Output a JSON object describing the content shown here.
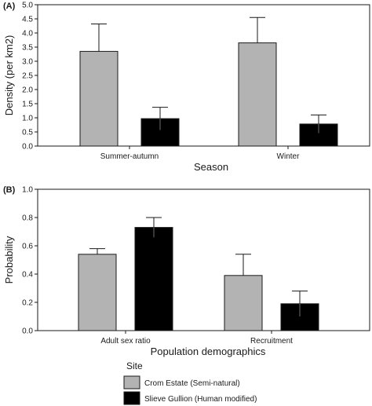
{
  "chart_data": [
    {
      "panel": "(A)",
      "type": "bar",
      "categories": [
        "Summer-autumn",
        "Winter"
      ],
      "series": [
        {
          "name": "Crom Estate (Semi-natural)",
          "values": [
            3.35,
            3.65
          ],
          "errors": [
            0.97,
            0.9
          ]
        },
        {
          "name": "Slieve Gullion (Human modified)",
          "values": [
            0.97,
            0.78
          ],
          "errors": [
            0.4,
            0.32
          ]
        }
      ],
      "xlabel": "Season",
      "ylabel": "Density (per km2)",
      "ylim": [
        0,
        5.0
      ],
      "yticks": [
        "0.0",
        "0.5",
        "1.0",
        "1.5",
        "2.0",
        "2.5",
        "3.0",
        "3.5",
        "4.0",
        "4.5",
        "5.0"
      ],
      "grid": false
    },
    {
      "panel": "(B)",
      "type": "bar",
      "categories": [
        "Adult sex ratio",
        "Recruitment"
      ],
      "series": [
        {
          "name": "Crom Estate (Semi-natural)",
          "values": [
            0.54,
            0.39
          ],
          "errors": [
            0.04,
            0.15
          ]
        },
        {
          "name": "Slieve Gullion (Human modified)",
          "values": [
            0.73,
            0.19
          ],
          "errors": [
            0.07,
            0.09
          ]
        }
      ],
      "xlabel": "Population demographics",
      "ylabel": "Probability",
      "ylim": [
        0,
        1.0
      ],
      "yticks": [
        "0.0",
        "0.2",
        "0.4",
        "0.6",
        "0.8",
        "1.0"
      ],
      "grid": false
    }
  ],
  "legend": {
    "title": "Site",
    "placement": "bottom",
    "entries": [
      {
        "label": "Crom Estate (Semi-natural)",
        "color": "#b3b3b3"
      },
      {
        "label": "Slieve Gullion (Human modified)",
        "color": "#000000"
      }
    ]
  },
  "colors": {
    "series_0": "#b3b3b3",
    "series_1": "#000000",
    "axis": "#1a1a1a"
  }
}
